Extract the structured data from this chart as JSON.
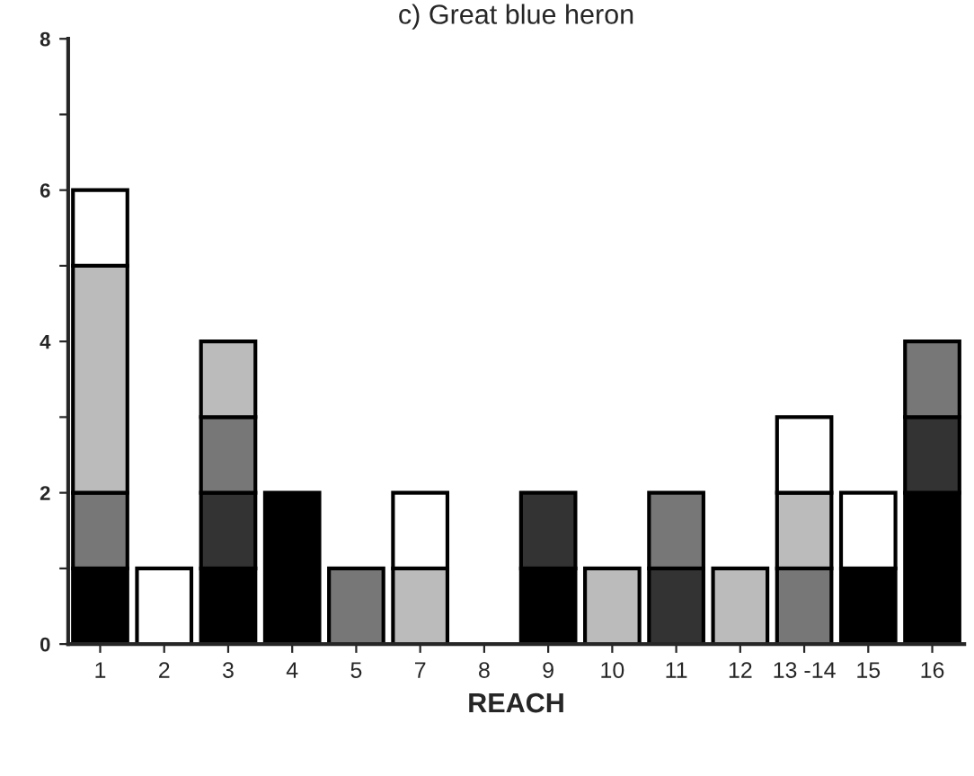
{
  "chart_data": {
    "type": "bar",
    "title": "c) Great blue heron",
    "xlabel": "REACH",
    "stacked": true,
    "categories": [
      "1",
      "2",
      "3",
      "4",
      "5",
      "7",
      "8",
      "9",
      "10",
      "11",
      "12",
      "13 -14",
      "15",
      "16"
    ],
    "series": [
      {
        "color": "#000000",
        "values": [
          1,
          0,
          1,
          2,
          0,
          0,
          0,
          1,
          0,
          0,
          0,
          0,
          1,
          2
        ]
      },
      {
        "color": "#333333",
        "values": [
          0,
          0,
          1,
          0,
          0,
          0,
          0,
          1,
          0,
          1,
          0,
          0,
          0,
          1
        ]
      },
      {
        "color": "#777777",
        "values": [
          1,
          0,
          1,
          0,
          1,
          0,
          0,
          0,
          0,
          1,
          0,
          1,
          0,
          1
        ]
      },
      {
        "color": "#bbbbbb",
        "values": [
          3,
          0,
          1,
          0,
          0,
          1,
          0,
          0,
          1,
          0,
          1,
          1,
          0,
          0
        ]
      },
      {
        "color": "#ffffff",
        "values": [
          1,
          1,
          0,
          0,
          0,
          1,
          0,
          0,
          0,
          0,
          0,
          1,
          1,
          0
        ]
      }
    ],
    "ylim": [
      0,
      8
    ],
    "yticks": [
      0,
      {
        "value": 1,
        "label": null
      },
      2,
      {
        "value": 3,
        "label": null
      },
      4,
      {
        "value": 5,
        "label": null
      },
      6,
      {
        "value": 7,
        "label": null
      },
      8
    ],
    "grid": false,
    "legend": false
  }
}
